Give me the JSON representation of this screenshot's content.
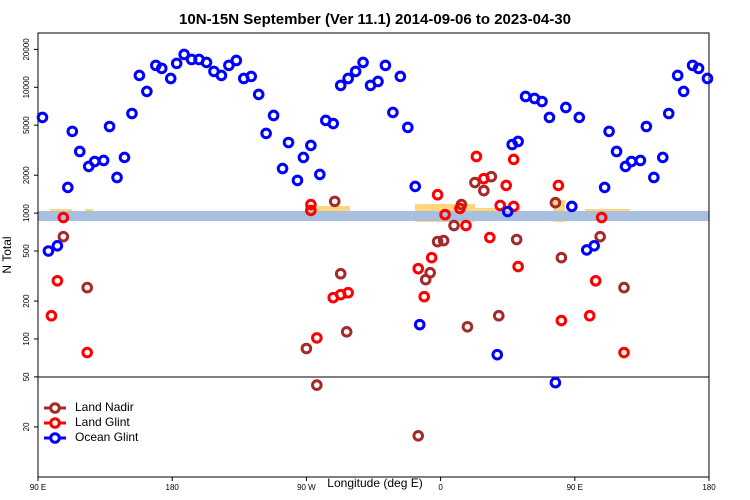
{
  "chart_data": {
    "type": "scatter",
    "title": "10N-15N September (Ver 11.1)   2014-09-06 to 2023-04-30",
    "x_label": "Longitude (deg E)",
    "y_label": "N Total",
    "xlim": [
      90,
      540
    ],
    "ylim": [
      8,
      27000
    ],
    "log_y": true,
    "xticks": [
      {
        "value": 90,
        "label": "90 E"
      },
      180,
      {
        "value": 270,
        "label": "90 W"
      },
      {
        "value": 360,
        "label": "0"
      },
      {
        "value": 450,
        "label": "90 E"
      },
      {
        "value": 540,
        "label": "180"
      }
    ],
    "yticks": [
      20,
      50,
      100,
      200,
      500,
      1000,
      2000,
      5000,
      10000,
      20000
    ],
    "legend": "bottom-left",
    "series": [
      {
        "name": "Land Nadir",
        "color": "#a52a2a",
        "x": [
          107,
          123,
          270,
          277,
          289,
          293,
          297,
          345,
          350,
          353,
          358,
          362,
          369,
          374,
          378,
          383,
          389,
          394,
          399,
          411,
          437,
          441,
          467,
          483
        ],
        "values": [
          650,
          256,
          84,
          43,
          1240,
          330,
          114,
          17,
          296,
          336,
          594,
          605,
          797,
          1170,
          125,
          1750,
          1510,
          1950,
          153,
          617,
          1210,
          443,
          650,
          256
        ]
      },
      {
        "name": "Land Glint",
        "color": "#ff0000",
        "x": [
          99,
          103,
          107,
          123,
          273,
          273,
          277,
          288,
          293,
          298,
          345,
          349,
          354,
          358,
          363,
          373,
          377,
          384,
          389,
          393,
          400,
          404,
          409,
          409,
          412,
          439,
          441,
          460,
          464,
          468,
          483
        ],
        "values": [
          153,
          290,
          923,
          78,
          1170,
          1050,
          102,
          213,
          225,
          233,
          362,
          217,
          443,
          1400,
          973,
          1090,
          797,
          2820,
          1880,
          640,
          1150,
          1660,
          1130,
          2670,
          376,
          1660,
          140,
          153,
          290,
          923,
          78
        ]
      },
      {
        "name": "Ocean Glint",
        "color": "#0000ff",
        "x": [
          93,
          97,
          103,
          110,
          113,
          118,
          124,
          128,
          134,
          138,
          143,
          148,
          153,
          158,
          163,
          169,
          173,
          179,
          183,
          188,
          193,
          198,
          203,
          208,
          213,
          218,
          223,
          228,
          233,
          238,
          243,
          248,
          254,
          258,
          264,
          268,
          273,
          279,
          283,
          288,
          293,
          298,
          303,
          308,
          313,
          318,
          323,
          328,
          333,
          338,
          343,
          346,
          398,
          405,
          408,
          412,
          417,
          423,
          428,
          433,
          437,
          444,
          448,
          453,
          458,
          463,
          470,
          473,
          478,
          484,
          488,
          494,
          498,
          503,
          509,
          513,
          519,
          523,
          529,
          533,
          539
        ],
        "values": [
          5760,
          500,
          550,
          1600,
          4460,
          3090,
          2350,
          2570,
          2620,
          4880,
          1920,
          2770,
          6190,
          12420,
          9270,
          14930,
          14130,
          11750,
          15490,
          18240,
          16630,
          16630,
          15760,
          13370,
          12420,
          14930,
          16330,
          11750,
          12190,
          8770,
          4300,
          5970,
          2260,
          3640,
          1820,
          2770,
          3450,
          2030,
          5450,
          5150,
          10350,
          11750,
          13370,
          15760,
          10350,
          11120,
          14930,
          6310,
          12190,
          4800,
          1630,
          130,
          75,
          1030,
          3510,
          3710,
          8450,
          8150,
          7710,
          5760,
          45,
          6910,
          1130,
          5760,
          510,
          550,
          1600,
          4460,
          3090,
          2350,
          2570,
          2620,
          4880,
          1920,
          2770,
          6190,
          12420,
          9270,
          14930,
          14130,
          11750
        ]
      }
    ]
  }
}
